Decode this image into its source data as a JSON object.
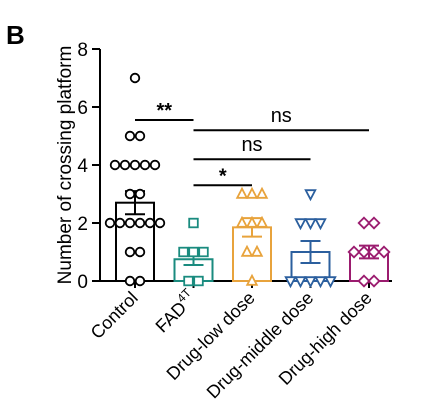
{
  "panel_label": "B",
  "chart_data": {
    "type": "bar",
    "ylabel": "Number of crossing platform",
    "ylim": [
      0,
      8
    ],
    "yticks": [
      0,
      2,
      4,
      6,
      8
    ],
    "grid": false,
    "legend": "none",
    "error_bars": "SEM",
    "categories": [
      {
        "main": "Control",
        "sup": ""
      },
      {
        "main": "FAD",
        "sup": "4T"
      },
      {
        "main": "Drug-low dose",
        "sup": ""
      },
      {
        "main": "Drug-middle dose",
        "sup": ""
      },
      {
        "main": "Drug-high dose",
        "sup": ""
      }
    ],
    "series": [
      {
        "values": [
          2.7,
          0.75,
          1.85,
          1.0,
          1.0
        ],
        "errors": [
          0.4,
          0.2,
          0.32,
          0.38,
          0.22
        ]
      }
    ],
    "points": [
      [
        7,
        5,
        5,
        4,
        4,
        4,
        4,
        4,
        3,
        3,
        2,
        2,
        2,
        2,
        2,
        2,
        1,
        1,
        0,
        0
      ],
      [
        2,
        1,
        1,
        1,
        0,
        0
      ],
      [
        3,
        3,
        3,
        2,
        2,
        2,
        1,
        1,
        0
      ],
      [
        3,
        2,
        2,
        2,
        0,
        0,
        0,
        0,
        0
      ],
      [
        2,
        2,
        1,
        1,
        1,
        1,
        0,
        0
      ]
    ],
    "markers": [
      "circle",
      "square",
      "triangle",
      "triangle-down",
      "diamond"
    ],
    "colors": [
      "#000000",
      "#1a8b7f",
      "#e8a33c",
      "#2b5f9e",
      "#9b1c6f"
    ],
    "significance": [
      {
        "from": 0,
        "to": 1,
        "label": "**",
        "y": 5.55
      },
      {
        "from": 1,
        "to": 2,
        "label": "*",
        "y": 3.3
      },
      {
        "from": 1,
        "to": 3,
        "label": "ns",
        "y": 4.2
      },
      {
        "from": 1,
        "to": 4,
        "label": "ns",
        "y": 5.2
      }
    ]
  }
}
